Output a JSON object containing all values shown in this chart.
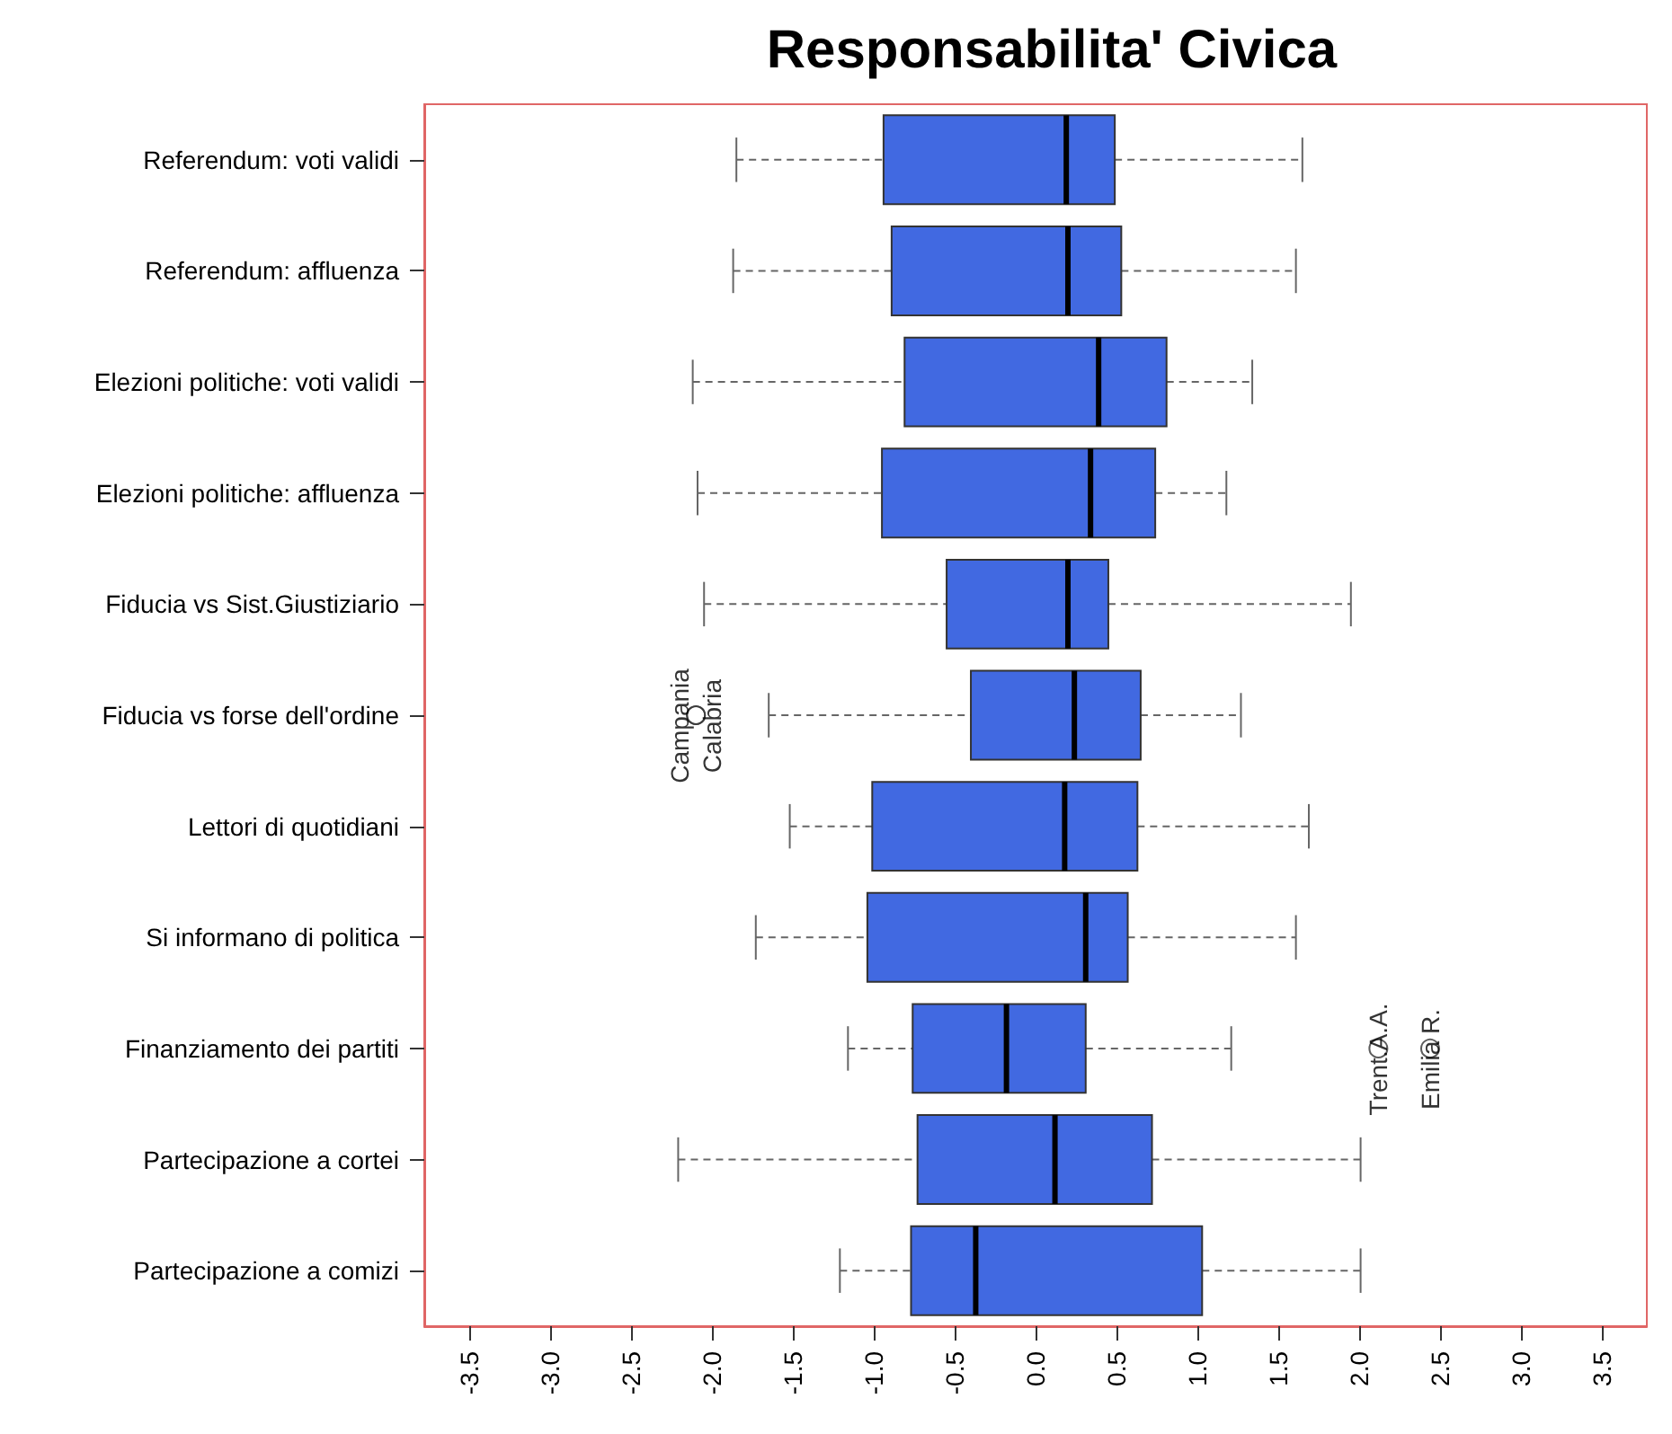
{
  "chart_data": {
    "type": "box",
    "title": "Responsabilita' Civica",
    "orientation": "horizontal",
    "categories": [
      "Referendum: voti validi",
      "Referendum: affluenza",
      "Elezioni politiche: voti validi",
      "Elezioni politiche: affluenza",
      "Fiducia vs Sist.Giustiziario",
      "Fiducia vs forse dell'ordine",
      "Lettori di quotidiani",
      "Si informano di politica",
      "Finanziamento dei partiti",
      "Partecipazione a cortei",
      "Partecipazione a comizi"
    ],
    "color": "#4169e1",
    "boxes": [
      {
        "low": -1.85,
        "q1": -0.94,
        "median": 0.19,
        "q3": 0.49,
        "high": 1.65
      },
      {
        "low": -1.87,
        "q1": -0.89,
        "median": 0.2,
        "q3": 0.53,
        "high": 1.61
      },
      {
        "low": -2.12,
        "q1": -0.81,
        "median": 0.39,
        "q3": 0.81,
        "high": 1.34
      },
      {
        "low": -2.09,
        "q1": -0.95,
        "median": 0.34,
        "q3": 0.74,
        "high": 1.18
      },
      {
        "low": -2.05,
        "q1": -0.55,
        "median": 0.2,
        "q3": 0.45,
        "high": 1.95
      },
      {
        "low": -1.65,
        "q1": -0.4,
        "median": 0.24,
        "q3": 0.65,
        "high": 1.27,
        "outliers": [
          -2.1,
          -2.1
        ]
      },
      {
        "low": -1.52,
        "q1": -1.01,
        "median": 0.18,
        "q3": 0.63,
        "high": 1.69
      },
      {
        "low": -1.73,
        "q1": -1.04,
        "median": 0.31,
        "q3": 0.57,
        "high": 1.61
      },
      {
        "low": -1.16,
        "q1": -0.76,
        "median": -0.18,
        "q3": 0.31,
        "high": 1.21,
        "outliers": [
          2.12,
          2.44
        ]
      },
      {
        "low": -2.21,
        "q1": -0.73,
        "median": 0.12,
        "q3": 0.72,
        "high": 2.01
      },
      {
        "low": -1.21,
        "q1": -0.77,
        "median": -0.37,
        "q3": 1.03,
        "high": 2.01
      }
    ],
    "annotations": [
      "Campania",
      "Calabria",
      "Trent.A.A.",
      "Emilia R."
    ],
    "xlim": [
      -3.78,
      3.78
    ],
    "xticks": [
      -3.5,
      {
        "value": -3,
        "label": "-3.0"
      },
      -2.5,
      {
        "value": -2,
        "label": "-2.0"
      },
      -1.5,
      {
        "value": -1,
        "label": "-1.0"
      },
      -0.5,
      {
        "value": 0,
        "label": "0.0"
      },
      0.5,
      {
        "value": 1,
        "label": "1.0"
      },
      1.5,
      {
        "value": 2,
        "label": "2.0"
      },
      2.5,
      {
        "value": 3,
        "label": "3.0"
      },
      3.5
    ],
    "grid": false
  }
}
